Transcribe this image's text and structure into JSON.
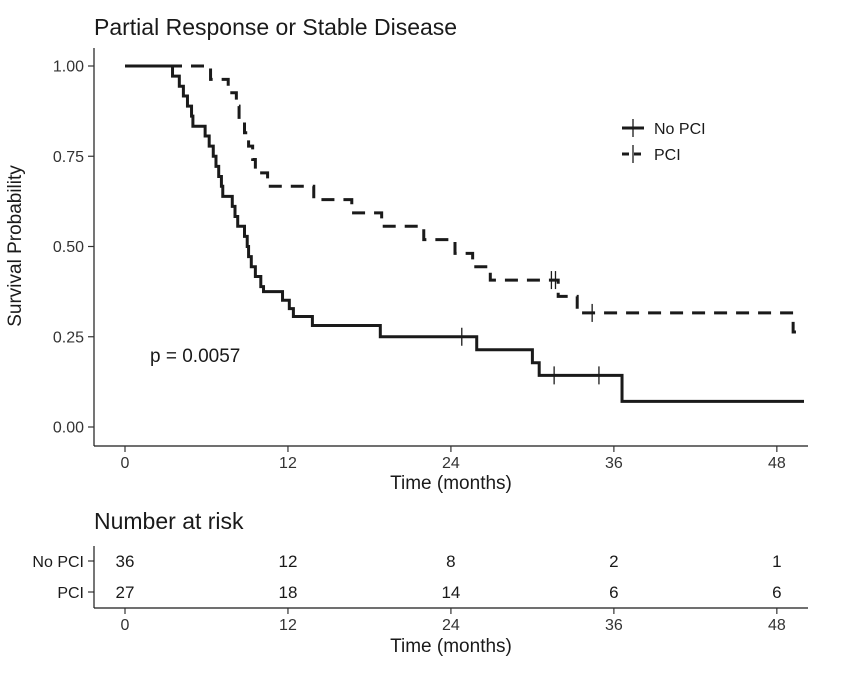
{
  "chart_data": {
    "type": "line",
    "title": "Partial Response or Stable Disease",
    "xlabel": "Time (months)",
    "ylabel": "Survival Probability",
    "xlim": [
      0,
      50
    ],
    "ylim": [
      0,
      1
    ],
    "x_ticks": [
      0,
      12,
      24,
      36,
      48
    ],
    "y_ticks": [
      "0.00",
      "0.25",
      "0.50",
      "0.75",
      "1.00"
    ],
    "legend": {
      "position": "top-right"
    },
    "annotation": "p = 0.0057",
    "grid": false,
    "series": [
      {
        "name": "No PCI",
        "style": "solid",
        "steps": [
          [
            0,
            1.0
          ],
          [
            3.5,
            0.972
          ],
          [
            4.0,
            0.944
          ],
          [
            4.3,
            0.917
          ],
          [
            4.6,
            0.889
          ],
          [
            4.9,
            0.861
          ],
          [
            5.0,
            0.833
          ],
          [
            5.9,
            0.806
          ],
          [
            6.2,
            0.778
          ],
          [
            6.5,
            0.75
          ],
          [
            6.7,
            0.722
          ],
          [
            6.9,
            0.694
          ],
          [
            7.1,
            0.667
          ],
          [
            7.2,
            0.639
          ],
          [
            7.9,
            0.611
          ],
          [
            8.1,
            0.583
          ],
          [
            8.3,
            0.556
          ],
          [
            8.8,
            0.528
          ],
          [
            9.0,
            0.5
          ],
          [
            9.1,
            0.472
          ],
          [
            9.3,
            0.444
          ],
          [
            9.6,
            0.417
          ],
          [
            10.0,
            0.389
          ],
          [
            10.2,
            0.375
          ],
          [
            11.6,
            0.351
          ],
          [
            12.1,
            0.328
          ],
          [
            12.4,
            0.306
          ],
          [
            13.8,
            0.281
          ],
          [
            18.8,
            0.25
          ],
          [
            25.9,
            0.214
          ],
          [
            30.0,
            0.178
          ],
          [
            30.5,
            0.143
          ],
          [
            36.6,
            0.071
          ],
          [
            50,
            0.071
          ]
        ],
        "censor_times": [
          24.8,
          31.6,
          34.9
        ]
      },
      {
        "name": "PCI",
        "style": "dashed",
        "steps": [
          [
            0,
            1.0
          ],
          [
            6.3,
            0.963
          ],
          [
            7.6,
            0.926
          ],
          [
            8.2,
            0.889
          ],
          [
            8.4,
            0.852
          ],
          [
            8.8,
            0.815
          ],
          [
            9.1,
            0.778
          ],
          [
            9.4,
            0.741
          ],
          [
            9.6,
            0.704
          ],
          [
            10.5,
            0.667
          ],
          [
            13.9,
            0.63
          ],
          [
            16.7,
            0.593
          ],
          [
            18.9,
            0.556
          ],
          [
            22.0,
            0.519
          ],
          [
            24.3,
            0.481
          ],
          [
            25.6,
            0.444
          ],
          [
            26.9,
            0.407
          ],
          [
            31.9,
            0.362
          ],
          [
            33.3,
            0.316
          ],
          [
            35.1,
            0.316
          ],
          [
            49.2,
            0.263
          ],
          [
            50,
            0.263
          ]
        ],
        "censor_times": [
          31.4,
          31.7,
          34.4
        ]
      }
    ],
    "risk_table": {
      "title": "Number at risk",
      "xlabel": "Time (months)",
      "times": [
        0,
        12,
        24,
        36,
        48
      ],
      "rows": [
        {
          "label": "No PCI",
          "values": [
            "36",
            "12",
            "8",
            "2",
            "1"
          ]
        },
        {
          "label": "PCI",
          "values": [
            "27",
            "18",
            "14",
            "6",
            "6"
          ]
        }
      ]
    }
  }
}
